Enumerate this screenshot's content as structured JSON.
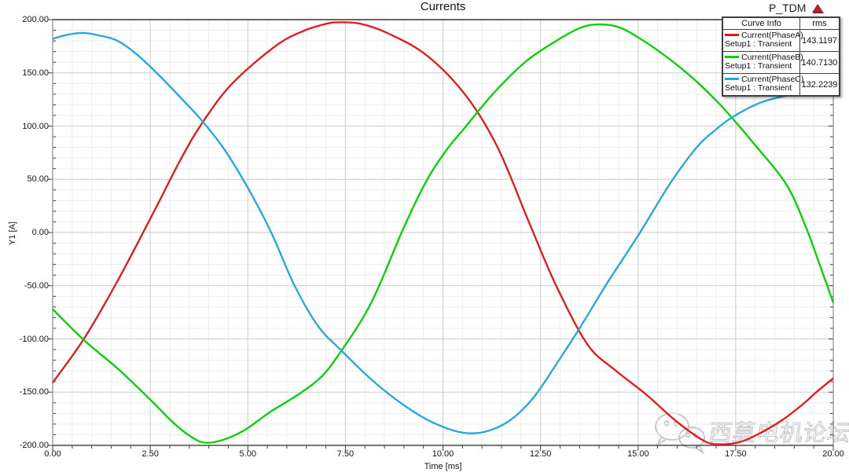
{
  "window": {
    "report_name": "P_TDM",
    "report_marker_icon": "red-triangle-icon"
  },
  "watermark": {
    "icon": "wechat-icon",
    "text": "西莫电机论坛"
  },
  "colors": {
    "grid_major": "#cbcbcb",
    "grid_minor": "#ededed",
    "axis_border": "#8a8a8a",
    "axis_top": "#666666",
    "axis_bottom": "#4a4a4a",
    "tick": "#3c3c3c",
    "phase_a": "#e81717",
    "phase_b": "#00d300",
    "phase_c": "#1fa7e4"
  },
  "chart_data": {
    "type": "line",
    "title": "Currents",
    "xlabel": "Time [ms]",
    "ylabel": "Y1 [A]",
    "xlim": [
      0,
      20
    ],
    "ylim": [
      -200,
      200
    ],
    "x_major_step": 2.5,
    "x_minor_step": 0.5,
    "y_major_step": 50,
    "y_minor_step": 10,
    "grid": "major+minor",
    "legend_position": "top-right",
    "legend": {
      "header_curve": "Curve Info",
      "header_value": "rms"
    },
    "x_tick_labels": [
      "0.00",
      "2.50",
      "5.00",
      "7.50",
      "10.00",
      "12.50",
      "15.00",
      "17.50",
      "20.00"
    ],
    "y_tick_labels": [
      "200.00",
      "150.00",
      "100.00",
      "50.00",
      "0.00",
      "-50.00",
      "-100.00",
      "-150.00",
      "-200.00"
    ],
    "series": [
      {
        "name": "Current(PhaseA)",
        "setup": "Setup1 : Transient",
        "rms": "143.1197",
        "color": "#e81717",
        "points": [
          [
            0,
            -141
          ],
          [
            0.8,
            -100
          ],
          [
            1.67,
            -45
          ],
          [
            2.6,
            20
          ],
          [
            3.3,
            70
          ],
          [
            3.85,
            104
          ],
          [
            4.6,
            140
          ],
          [
            5.7,
            175
          ],
          [
            6.4,
            189
          ],
          [
            7.0,
            196
          ],
          [
            7.35,
            197.5
          ],
          [
            7.9,
            196
          ],
          [
            8.6,
            187
          ],
          [
            9.6,
            166
          ],
          [
            10.6,
            128
          ],
          [
            11.4,
            80
          ],
          [
            12.2,
            10
          ],
          [
            12.9,
            -50
          ],
          [
            13.7,
            -105
          ],
          [
            14.4,
            -129
          ],
          [
            15.2,
            -152
          ],
          [
            16.0,
            -178
          ],
          [
            16.7,
            -196
          ],
          [
            17.1,
            -199
          ],
          [
            17.6,
            -197
          ],
          [
            18.1,
            -189
          ],
          [
            18.7,
            -176
          ],
          [
            19.2,
            -162
          ],
          [
            19.6,
            -149
          ],
          [
            20,
            -137
          ]
        ]
      },
      {
        "name": "Current(PhaseB)",
        "setup": "Setup1 : Transient",
        "rms": "140.7130",
        "color": "#00d300",
        "points": [
          [
            0,
            -72
          ],
          [
            0.8,
            -101
          ],
          [
            1.67,
            -128
          ],
          [
            2.5,
            -157
          ],
          [
            3.1,
            -179
          ],
          [
            3.55,
            -192
          ],
          [
            3.9,
            -197.5
          ],
          [
            4.35,
            -195
          ],
          [
            4.9,
            -186
          ],
          [
            5.6,
            -168
          ],
          [
            6.3,
            -152
          ],
          [
            6.9,
            -135
          ],
          [
            7.4,
            -111
          ],
          [
            8.0,
            -77
          ],
          [
            8.4,
            -47
          ],
          [
            9.0,
            5
          ],
          [
            9.6,
            50
          ],
          [
            10.1,
            78
          ],
          [
            10.55,
            98
          ],
          [
            11.3,
            131
          ],
          [
            12.1,
            160
          ],
          [
            12.9,
            180
          ],
          [
            13.5,
            192
          ],
          [
            13.95,
            195.5
          ],
          [
            14.5,
            193
          ],
          [
            15.1,
            181
          ],
          [
            15.8,
            163
          ],
          [
            16.4,
            145
          ],
          [
            17.0,
            124
          ],
          [
            17.4,
            108
          ],
          [
            18.0,
            82
          ],
          [
            18.8,
            45
          ],
          [
            19.3,
            5
          ],
          [
            19.65,
            -30
          ],
          [
            20,
            -66
          ]
        ]
      },
      {
        "name": "Current(PhaseC)",
        "setup": "Setup1 : Transient",
        "rms": "132.2239",
        "color": "#1fa7e4",
        "points": [
          [
            0,
            182
          ],
          [
            0.4,
            186
          ],
          [
            0.8,
            187.5
          ],
          [
            1.2,
            185
          ],
          [
            1.67,
            180
          ],
          [
            2.2,
            166
          ],
          [
            2.8,
            145
          ],
          [
            3.4,
            122
          ],
          [
            3.85,
            104
          ],
          [
            4.4,
            78
          ],
          [
            5.0,
            42
          ],
          [
            5.6,
            0
          ],
          [
            6.2,
            -50
          ],
          [
            6.8,
            -88
          ],
          [
            7.4,
            -111
          ],
          [
            8.1,
            -136
          ],
          [
            8.8,
            -157
          ],
          [
            9.5,
            -174
          ],
          [
            10.1,
            -184
          ],
          [
            10.6,
            -188.5
          ],
          [
            11.1,
            -187
          ],
          [
            11.7,
            -177
          ],
          [
            12.3,
            -156
          ],
          [
            12.9,
            -124
          ],
          [
            13.5,
            -90
          ],
          [
            14.2,
            -48
          ],
          [
            15.05,
            0
          ],
          [
            15.8,
            45
          ],
          [
            16.5,
            80
          ],
          [
            17.0,
            97
          ],
          [
            17.4,
            108
          ],
          [
            18.0,
            120
          ],
          [
            18.5,
            126
          ],
          [
            19.2,
            131
          ],
          [
            20,
            133
          ]
        ]
      }
    ]
  }
}
